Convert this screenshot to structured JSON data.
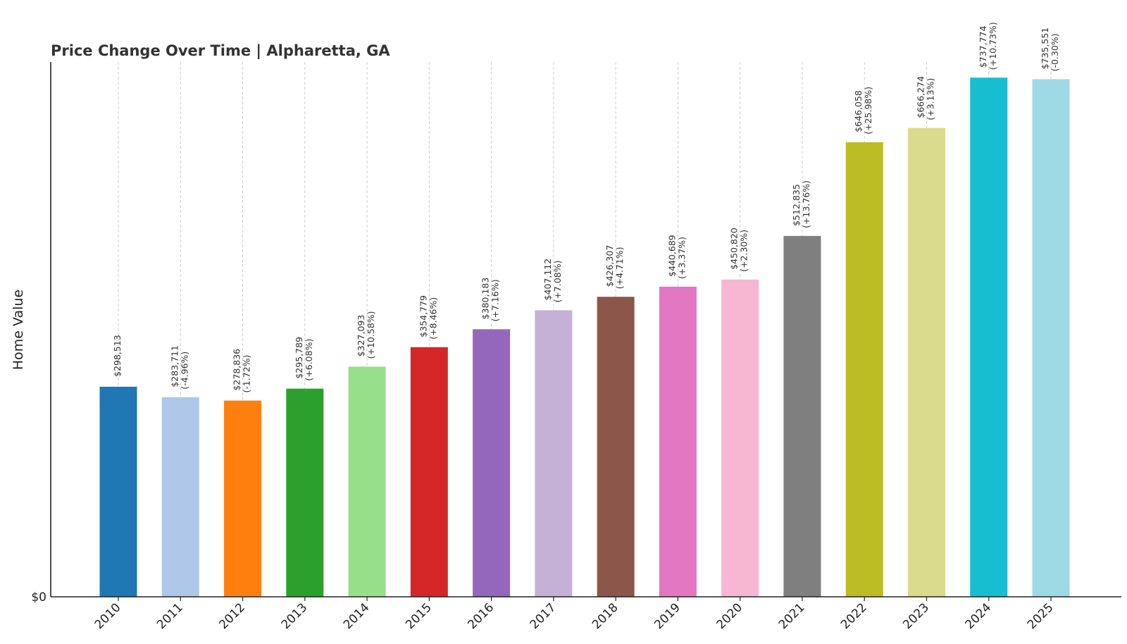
{
  "chart_data": {
    "type": "bar",
    "title": "Price Change Over Time | Alpharetta, GA",
    "xlabel": "",
    "ylabel": "Home Value",
    "y_tick_label": "$0",
    "ylim": [
      0,
      760000
    ],
    "grid": "vertical dashed",
    "categories": [
      "2010",
      "2011",
      "2012",
      "2013",
      "2014",
      "2015",
      "2016",
      "2017",
      "2018",
      "2019",
      "2020",
      "2021",
      "2022",
      "2023",
      "2024",
      "2025"
    ],
    "values": [
      298513,
      283711,
      278836,
      295789,
      327093,
      354779,
      380183,
      407112,
      426307,
      440689,
      450820,
      512835,
      646058,
      666274,
      737774,
      735551
    ],
    "value_labels": [
      "$298,513",
      "$283,711",
      "$278,836",
      "$295,789",
      "$327,093",
      "$354,779",
      "$380,183",
      "$407,112",
      "$426,307",
      "$440,689",
      "$450,820",
      "$512,835",
      "$646,058",
      "$666,274",
      "$737,774",
      "$735,551"
    ],
    "change_labels": [
      "",
      "(-4.96%)",
      "(-1.72%)",
      "(+6.08%)",
      "(+10.58%)",
      "(+8.46%)",
      "(+7.16%)",
      "(+7.08%)",
      "(+4.71%)",
      "(+3.37%)",
      "(+2.30%)",
      "(+13.76%)",
      "(+25.98%)",
      "(+3.13%)",
      "(+10.73%)",
      "(-0.30%)"
    ],
    "colors": [
      "#1f77b4",
      "#aec7e8",
      "#ff7f0e",
      "#2ca02c",
      "#98df8a",
      "#d62728",
      "#9467bd",
      "#c5b0d5",
      "#8c564b",
      "#e377c2",
      "#f7b6d2",
      "#7f7f7f",
      "#bcbd22",
      "#dbdb8d",
      "#17becf",
      "#9edae5"
    ]
  }
}
